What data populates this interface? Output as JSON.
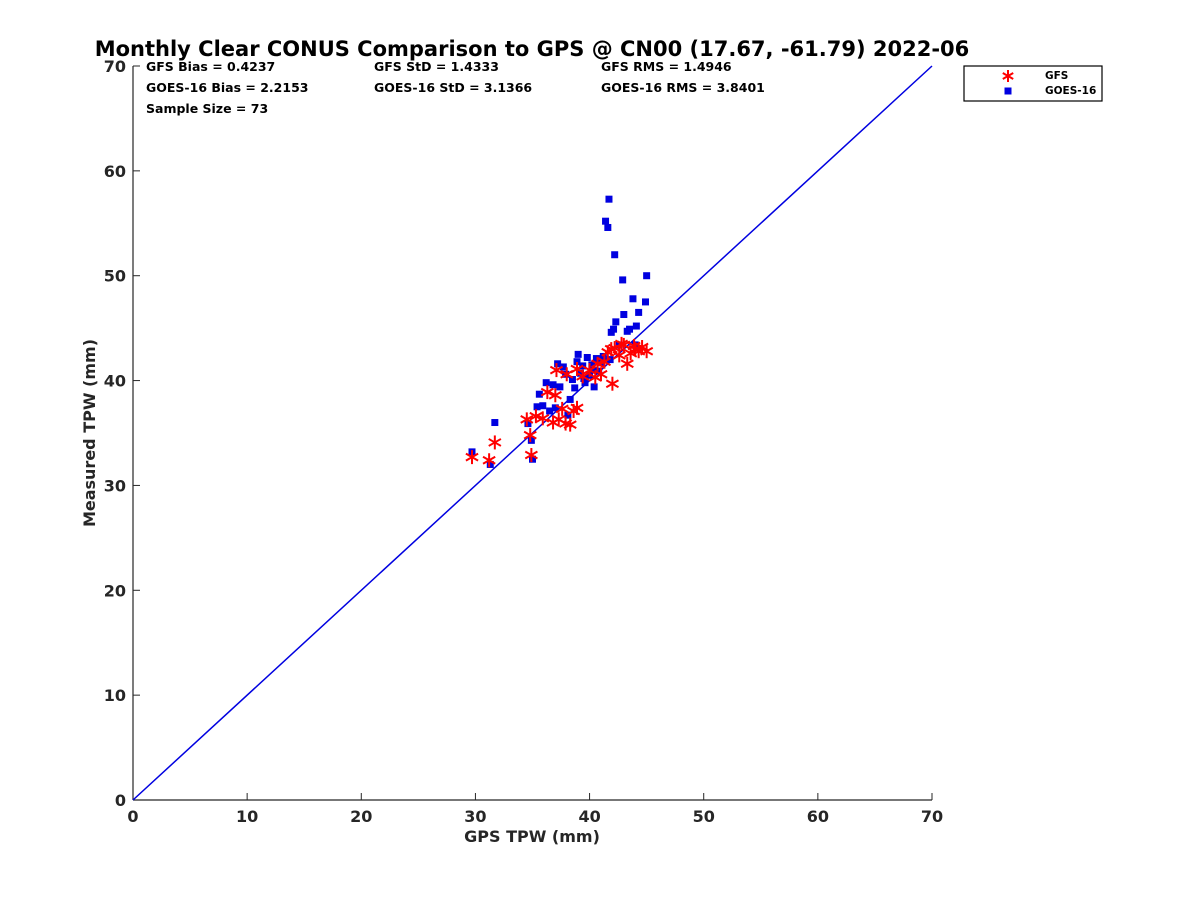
{
  "chart_data": {
    "type": "scatter",
    "title": "Monthly Clear CONUS Comparison to GPS @ CN00 (17.67, -61.79) 2022-06",
    "xlabel": "GPS TPW (mm)",
    "ylabel": "Measured TPW (mm)",
    "xlim": [
      0,
      70
    ],
    "ylim": [
      0,
      70
    ],
    "xticks": [
      0,
      10,
      20,
      30,
      40,
      50,
      60,
      70
    ],
    "yticks": [
      0,
      10,
      20,
      30,
      40,
      50,
      60,
      70
    ],
    "grid": false,
    "legend_position": "top-right, outside",
    "stats": [
      [
        "GFS Bias = 0.4237",
        "GFS StD = 1.4333",
        "GFS RMS = 1.4946"
      ],
      [
        "GOES-16 Bias = 2.2153",
        "GOES-16 StD = 3.1366",
        "GOES-16 RMS = 3.8401"
      ],
      [
        "Sample Size = 73"
      ]
    ],
    "reference_line": {
      "name": "1:1",
      "color": "#0000e0",
      "x": [
        0,
        70
      ],
      "y": [
        0,
        70
      ]
    },
    "series": [
      {
        "name": "GFS",
        "marker": "asterisk",
        "color": "#ff0000",
        "points": [
          [
            29.7,
            32.7
          ],
          [
            31.2,
            32.4
          ],
          [
            31.7,
            34.1
          ],
          [
            34.5,
            36.3
          ],
          [
            34.8,
            34.8
          ],
          [
            34.9,
            32.9
          ],
          [
            35.3,
            36.6
          ],
          [
            35.9,
            36.4
          ],
          [
            36.3,
            38.9
          ],
          [
            36.8,
            36.0
          ],
          [
            37.0,
            38.6
          ],
          [
            37.3,
            36.3
          ],
          [
            37.6,
            37.3
          ],
          [
            37.9,
            35.9
          ],
          [
            38.3,
            35.8
          ],
          [
            38.6,
            37.1
          ],
          [
            38.9,
            37.4
          ],
          [
            37.1,
            41.0
          ],
          [
            38.0,
            40.6
          ],
          [
            38.9,
            41.1
          ],
          [
            39.4,
            40.4
          ],
          [
            40.0,
            41.0
          ],
          [
            40.5,
            40.3
          ],
          [
            41.0,
            40.6
          ],
          [
            41.3,
            41.8
          ],
          [
            41.6,
            42.7
          ],
          [
            42.0,
            39.7
          ],
          [
            42.2,
            43.1
          ],
          [
            42.6,
            42.4
          ],
          [
            43.0,
            43.4
          ],
          [
            43.3,
            41.6
          ],
          [
            43.6,
            42.6
          ],
          [
            44.0,
            43.0
          ],
          [
            44.3,
            42.8
          ],
          [
            44.6,
            43.2
          ],
          [
            45.0,
            42.8
          ],
          [
            41.9,
            43.0
          ],
          [
            42.8,
            43.5
          ],
          [
            43.9,
            43.3
          ],
          [
            40.7,
            41.6
          ]
        ]
      },
      {
        "name": "GOES-16",
        "marker": "square",
        "color": "#0000e0",
        "points": [
          [
            29.7,
            33.2
          ],
          [
            31.3,
            32.0
          ],
          [
            31.7,
            36.0
          ],
          [
            34.6,
            35.9
          ],
          [
            34.9,
            34.3
          ],
          [
            35.0,
            32.5
          ],
          [
            35.4,
            37.5
          ],
          [
            35.6,
            38.7
          ],
          [
            35.9,
            37.6
          ],
          [
            36.2,
            39.8
          ],
          [
            36.5,
            37.1
          ],
          [
            36.8,
            39.6
          ],
          [
            37.0,
            37.4
          ],
          [
            37.2,
            41.6
          ],
          [
            37.4,
            39.4
          ],
          [
            37.7,
            41.3
          ],
          [
            37.9,
            40.6
          ],
          [
            38.1,
            36.7
          ],
          [
            38.3,
            38.2
          ],
          [
            38.5,
            40.1
          ],
          [
            38.7,
            39.3
          ],
          [
            38.9,
            41.8
          ],
          [
            39.0,
            42.5
          ],
          [
            39.2,
            40.7
          ],
          [
            39.4,
            41.4
          ],
          [
            39.6,
            39.8
          ],
          [
            39.8,
            42.2
          ],
          [
            40.0,
            40.5
          ],
          [
            40.2,
            41.5
          ],
          [
            40.4,
            39.4
          ],
          [
            40.6,
            42.1
          ],
          [
            40.8,
            40.9
          ],
          [
            41.0,
            41.7
          ],
          [
            41.2,
            42.3
          ],
          [
            41.4,
            55.2
          ],
          [
            41.6,
            54.6
          ],
          [
            41.7,
            57.3
          ],
          [
            41.9,
            44.6
          ],
          [
            42.1,
            44.9
          ],
          [
            42.2,
            52.0
          ],
          [
            42.3,
            45.6
          ],
          [
            42.6,
            43.4
          ],
          [
            42.9,
            49.6
          ],
          [
            43.0,
            46.3
          ],
          [
            43.3,
            44.7
          ],
          [
            43.5,
            44.9
          ],
          [
            43.8,
            47.8
          ],
          [
            44.0,
            43.4
          ],
          [
            44.1,
            45.2
          ],
          [
            44.3,
            46.5
          ],
          [
            44.9,
            47.5
          ],
          [
            45.0,
            50.0
          ],
          [
            39.5,
            40.2
          ],
          [
            40.3,
            41.0
          ],
          [
            41.8,
            42.0
          ]
        ]
      }
    ]
  }
}
